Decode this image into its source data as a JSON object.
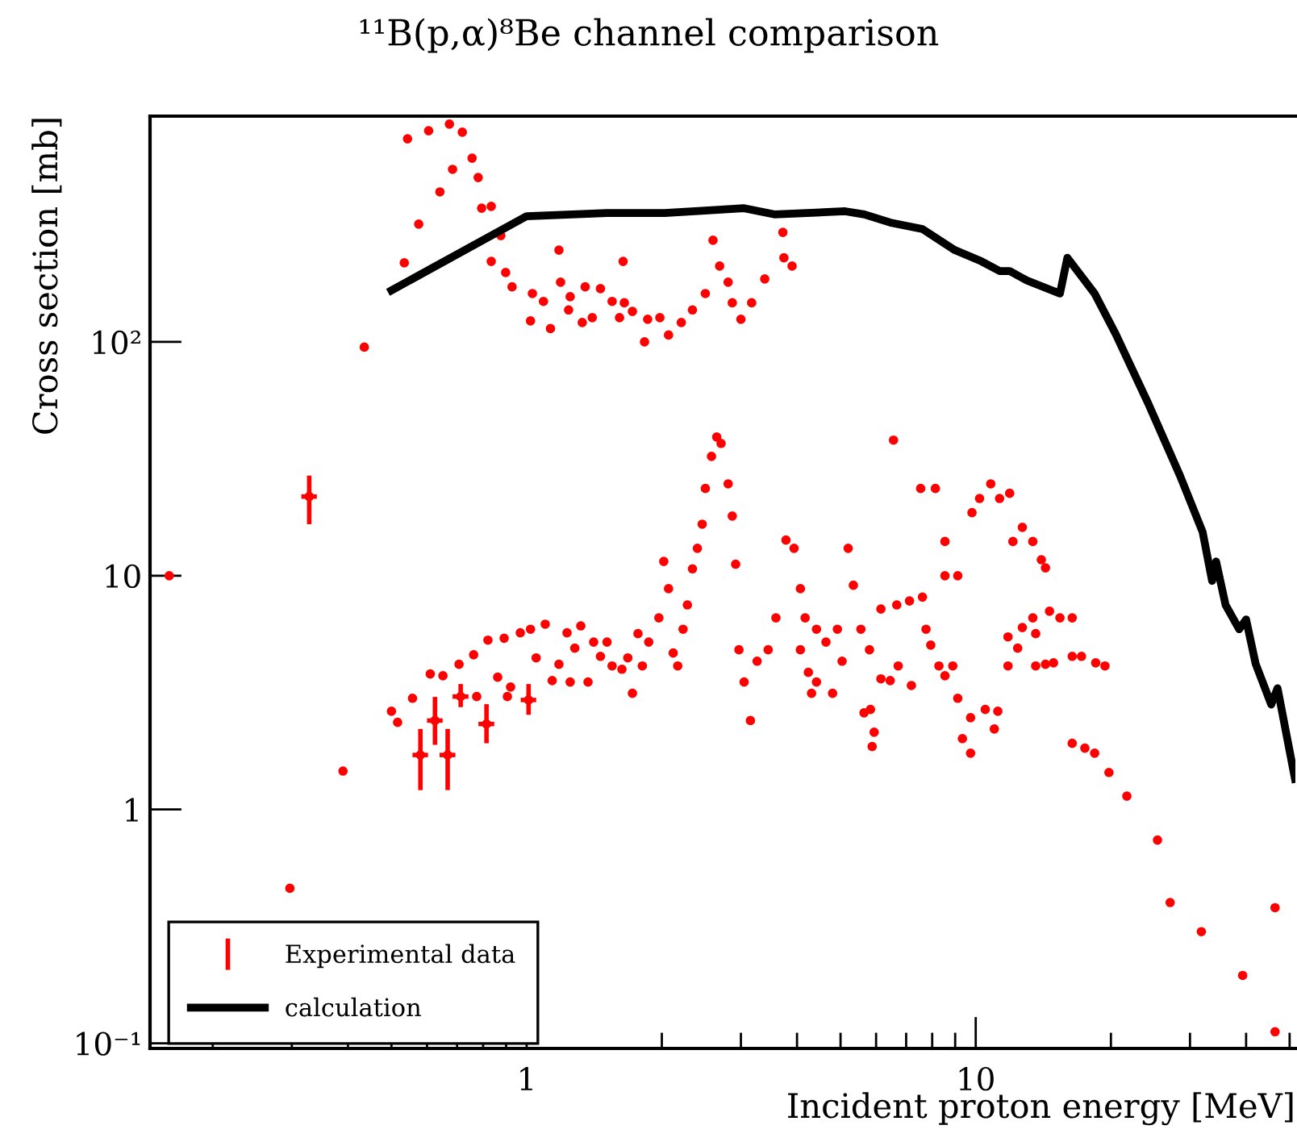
{
  "chart_data": {
    "type": "scatter",
    "title": "¹¹B(p,α)⁸Be channel comparison",
    "xlabel": "Incident proton energy [MeV]",
    "ylabel": "Cross section [mb]",
    "log": "xy",
    "xlim": [
      0.145,
      51.5
    ],
    "ylim": [
      0.095,
      924
    ],
    "xticks": [
      1,
      10
    ],
    "yticks": [
      {
        "value": 0.1,
        "label": "10⁻¹"
      },
      1,
      10,
      {
        "value": 100,
        "label": "10²"
      }
    ],
    "grid": false,
    "legend": "bottom left",
    "marker": "circle",
    "series": [
      {
        "name": "Experimental data",
        "color": "#ff0000",
        "x": [
          0.328,
          0.58,
          0.625,
          0.667,
          0.713,
          0.814,
          1.01,
          0.16,
          0.297,
          0.39,
          0.435,
          0.5,
          0.516,
          0.557,
          0.61,
          0.651,
          0.707,
          0.762,
          0.774,
          0.82,
          0.862,
          0.891,
          0.906,
          0.921,
          0.968,
          1.02,
          1.05,
          1.1,
          1.14,
          1.18,
          1.23,
          1.25,
          1.28,
          1.32,
          1.37,
          1.41,
          1.46,
          1.51,
          1.55,
          1.63,
          1.68,
          1.72,
          1.77,
          1.81,
          1.87,
          1.97,
          2.02,
          2.07,
          2.12,
          2.17,
          2.23,
          2.28,
          2.34,
          2.4,
          2.46,
          2.5,
          2.58,
          2.65,
          2.71,
          2.81,
          2.87,
          2.92,
          2.97,
          3.05,
          3.15,
          3.26,
          3.45,
          3.59,
          3.78,
          3.94,
          4.07,
          4.17,
          4.42,
          4.64,
          4.92,
          5.2,
          5.34,
          5.55,
          5.8,
          6.15,
          6.67,
          7.12,
          7.61,
          7.75,
          7.94,
          4.07,
          4.24,
          4.42,
          4.31,
          4.8,
          5.04,
          5.64,
          5.83,
          5.94,
          5.88,
          6.15,
          6.45,
          6.72,
          7.19,
          6.56,
          7.54,
          8.13,
          8.54,
          8.54,
          9.12,
          8.28,
          8.54,
          8.89,
          9.12,
          9.34,
          9.74,
          9.74,
          9.81,
          10.2,
          10.8,
          11.3,
          11.9,
          10.5,
          11.0,
          11.2,
          12.1,
          12.7,
          13.4,
          14.0,
          14.3,
          11.8,
          12.4,
          12.7,
          13.4,
          13.6,
          11.8,
          13.6,
          14.3,
          14.9,
          14.6,
          15.4,
          16.4,
          16.4,
          17.2,
          18.5,
          19.4,
          16.4,
          17.5,
          18.4,
          19.8,
          21.7,
          25.4,
          27.1,
          31.8,
          39.3,
          46.4,
          46.4,
          0.534,
          0.575,
          0.543,
          0.605,
          0.673,
          0.719,
          0.684,
          0.641,
          0.756,
          0.78,
          0.794,
          0.834,
          0.876,
          0.834,
          0.898,
          0.928,
          1.02,
          1.03,
          1.09,
          1.13,
          1.18,
          1.19,
          1.25,
          1.24,
          1.33,
          1.35,
          1.4,
          1.46,
          1.55,
          1.61,
          1.64,
          1.65,
          1.72,
          1.83,
          1.86,
          1.98,
          2.07,
          2.21,
          2.34,
          2.5,
          2.6,
          2.69,
          2.81,
          2.87,
          3.0,
          3.17,
          3.39,
          3.72,
          3.74,
          3.9
        ],
        "values": [
          21.8,
          1.71,
          2.4,
          1.71,
          3.04,
          2.32,
          2.94,
          10,
          0.46,
          1.46,
          95,
          2.63,
          2.36,
          2.99,
          3.8,
          3.73,
          4.18,
          4.59,
          3.04,
          5.3,
          3.68,
          5.4,
          3.04,
          3.34,
          5.7,
          5.9,
          4.45,
          6.2,
          3.56,
          4.18,
          5.7,
          3.51,
          4.9,
          6.1,
          3.51,
          5.2,
          4.52,
          5.2,
          4.11,
          3.98,
          4.45,
          3.14,
          5.65,
          4.11,
          5.2,
          6.6,
          11.5,
          8.8,
          4.67,
          4.11,
          5.9,
          7.5,
          10.7,
          13.1,
          16.6,
          23.6,
          32.4,
          39.2,
          36.8,
          24.7,
          18.0,
          11.2,
          4.82,
          3.51,
          2.4,
          4.31,
          4.82,
          6.6,
          14.2,
          13.1,
          8.8,
          6.6,
          5.9,
          5.2,
          5.9,
          13.1,
          9.1,
          5.9,
          4.82,
          7.2,
          7.5,
          7.8,
          8.1,
          5.9,
          5.05,
          4.82,
          3.86,
          3.51,
          3.14,
          3.14,
          4.31,
          2.59,
          2.68,
          2.14,
          1.86,
          3.62,
          3.56,
          4.11,
          3.39,
          38,
          23.6,
          23.6,
          14.0,
          10,
          10,
          4.11,
          3.73,
          4.11,
          2.99,
          2.01,
          1.74,
          2.47,
          18.6,
          21.4,
          24.7,
          21.4,
          22.5,
          2.68,
          2.21,
          2.63,
          14.0,
          16.1,
          14.0,
          11.7,
          10.8,
          5.47,
          4.9,
          6.0,
          6.6,
          5.65,
          4.11,
          4.11,
          4.18,
          4.24,
          7.05,
          6.6,
          6.6,
          4.52,
          4.52,
          4.24,
          4.11,
          1.92,
          1.83,
          1.74,
          1.44,
          1.14,
          0.74,
          0.4,
          0.3,
          0.195,
          0.38,
          0.112,
          218,
          319,
          739,
          800,
          854,
          789,
          547,
          438,
          611,
          505,
          373,
          380,
          285,
          221,
          198,
          172,
          123,
          161,
          149,
          114,
          247,
          180,
          156,
          137,
          121,
          172,
          127,
          169,
          149,
          127,
          221,
          147,
          135,
          100,
          125,
          127,
          107,
          121,
          137,
          161,
          272,
          211,
          180,
          147,
          125,
          147,
          186,
          294,
          229,
          211
        ],
        "errors": [
          [
            16.6,
            26.8
          ],
          0.5,
          [
            1.89,
            3.03
          ],
          0.5,
          [
            2.74,
            3.44
          ],
          [
            1.92,
            2.82
          ],
          [
            2.54,
            3.44
          ],
          null,
          null,
          null,
          null,
          null,
          null,
          null,
          null,
          null,
          null,
          null,
          null,
          null,
          null,
          null,
          null,
          null,
          null,
          null,
          null,
          null,
          null,
          null,
          null,
          null,
          null,
          null,
          null,
          null,
          null,
          null,
          null,
          null,
          null,
          null,
          null,
          null,
          null,
          null,
          null,
          null,
          null,
          null,
          null,
          null,
          null,
          null,
          null,
          null,
          null,
          null,
          null,
          null,
          null,
          null,
          null,
          null,
          null,
          null,
          null,
          null,
          null,
          null,
          null,
          null,
          null,
          null,
          null,
          null,
          null,
          null,
          null,
          null,
          null,
          null,
          null,
          null,
          null,
          null,
          null,
          null,
          null,
          null,
          null,
          null,
          null,
          null,
          null,
          null,
          null,
          null,
          null,
          null,
          null,
          null,
          null,
          null,
          null,
          null,
          null,
          null,
          null,
          null,
          null,
          null,
          null,
          null,
          null,
          null,
          null,
          null,
          null,
          null,
          null,
          null,
          null,
          null,
          null,
          null,
          null,
          null,
          null,
          null,
          null,
          null,
          null,
          null,
          null,
          null,
          null,
          null,
          null,
          null,
          null,
          null,
          null,
          null,
          null,
          null,
          null,
          null,
          null,
          null,
          null,
          null,
          null,
          null,
          null,
          null,
          null,
          null,
          null,
          null,
          null,
          null,
          null,
          null,
          null,
          null,
          null,
          null,
          null,
          null,
          null,
          null,
          null,
          null,
          null,
          null,
          null,
          null,
          null,
          null,
          null,
          null,
          null,
          null,
          null,
          null,
          null,
          null,
          null,
          null,
          null,
          null,
          null,
          null,
          null,
          null,
          null,
          null,
          null,
          null,
          null,
          null
        ],
        "xerrors": [
          0.013,
          0.023,
          0.025,
          0.027,
          0.029,
          0.033,
          0.04,
          null,
          null,
          null,
          null,
          null,
          null,
          null,
          null,
          null,
          null,
          null,
          null,
          null,
          null,
          null,
          null,
          null,
          null,
          null,
          null,
          null,
          null,
          null,
          null,
          null,
          null,
          null,
          null,
          null,
          null,
          null,
          null,
          null,
          null,
          null,
          null,
          null,
          null,
          null,
          null,
          null,
          null,
          null,
          null,
          null,
          null,
          null,
          null,
          null,
          null,
          null,
          null,
          null,
          null,
          null,
          null,
          null,
          null,
          null,
          null,
          null,
          null,
          null,
          null,
          null,
          null,
          null,
          null,
          null,
          null,
          null,
          null,
          null,
          null,
          null,
          null,
          null,
          null,
          null,
          null,
          null,
          null,
          null,
          null,
          null,
          null,
          null,
          null,
          null,
          null,
          null,
          null,
          null,
          null,
          null,
          null,
          null,
          null,
          null,
          null,
          null,
          null,
          null,
          null,
          null,
          null,
          null,
          null,
          null,
          null,
          null,
          null,
          null,
          null,
          null,
          null,
          null,
          null,
          null,
          null,
          null,
          null,
          null,
          null,
          null,
          null,
          null,
          null,
          null,
          null,
          null,
          null,
          null,
          null,
          null,
          null,
          null,
          null,
          null,
          null,
          null,
          null,
          null,
          null,
          null,
          null,
          null,
          null,
          null,
          null,
          null,
          null,
          null,
          null,
          null,
          null,
          null,
          null,
          null,
          null,
          null,
          null,
          null,
          null,
          null,
          null,
          null,
          null,
          null,
          null,
          null,
          null,
          null,
          null,
          null,
          null,
          null,
          null,
          null,
          null,
          null,
          null,
          null,
          null,
          null,
          null,
          null,
          null,
          null,
          null,
          null,
          null,
          null,
          null,
          null
        ]
      },
      {
        "name": "calculation",
        "type": "line",
        "color": "#000000",
        "line_style": "solid",
        "marker": "none",
        "x": [
          0.5,
          1.0,
          1.51,
          2.03,
          3.05,
          3.56,
          5.12,
          5.65,
          6.45,
          7.61,
          8.98,
          10.3,
          11.3,
          11.9,
          13.0,
          15.4,
          16.0,
          18.4,
          20.5,
          24.2,
          28.5,
          32.0,
          33.6,
          34.3,
          36.0,
          38.6,
          40.0,
          42.0,
          45.5,
          47.0,
          51.4
        ],
        "values": [
          166,
          345,
          356,
          356,
          373,
          351,
          362,
          351,
          324,
          304,
          247,
          221,
          201,
          201,
          183,
          161,
          229,
          161,
          108,
          54.7,
          26.8,
          15.4,
          9.5,
          11.5,
          7.5,
          5.9,
          6.5,
          4.2,
          2.81,
          3.3,
          1.35
        ]
      }
    ]
  }
}
